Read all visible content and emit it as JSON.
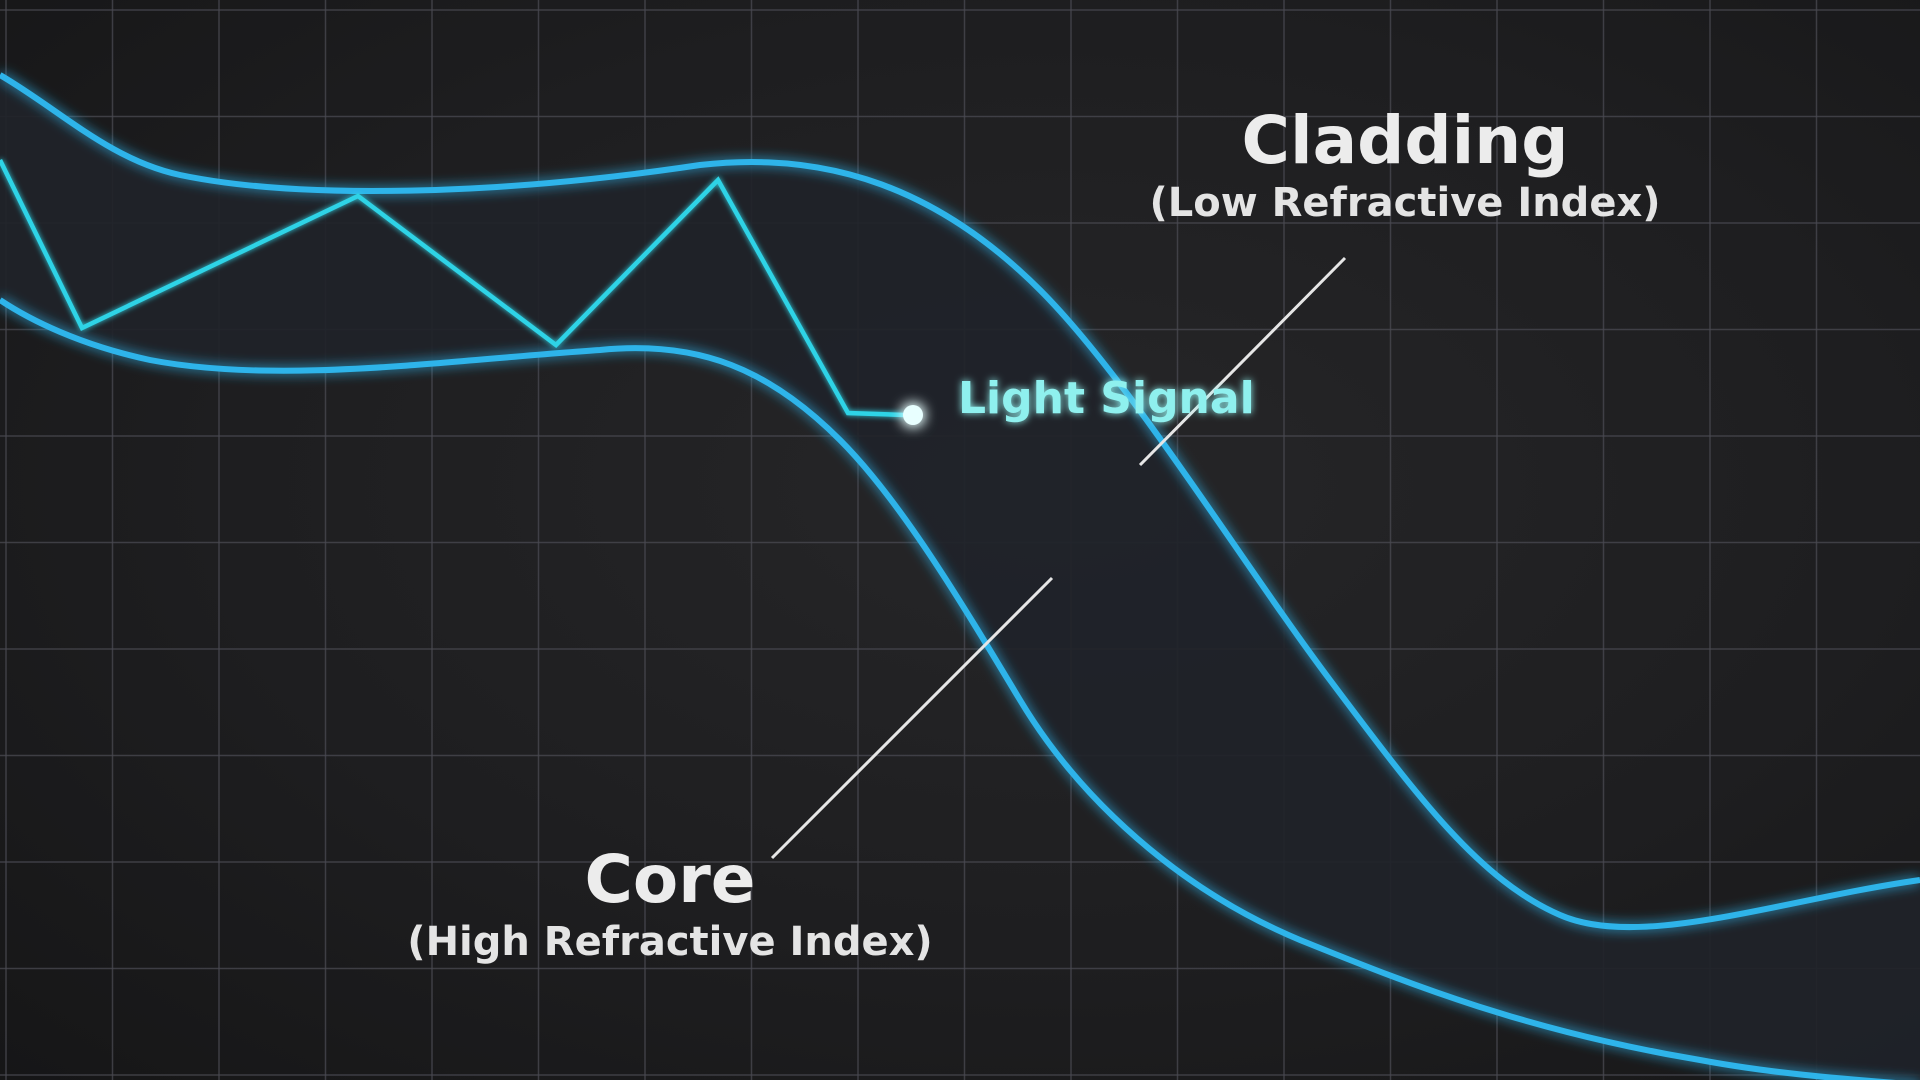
{
  "diagram": {
    "cladding_label": "Cladding",
    "cladding_sublabel": "(Low Refractive Index)",
    "core_label": "Core",
    "core_sublabel": "(High Refractive Index)",
    "signal_label": "Light Signal"
  },
  "colors": {
    "background": "#1c1c1e",
    "grid": "#4a4a52",
    "fiber_edge": "#2fb4ea",
    "fiber_fill": "#1f2329",
    "light_path": "#2fd3e6",
    "label_text": "#ececec",
    "signal_text": "#8ff0ee"
  }
}
